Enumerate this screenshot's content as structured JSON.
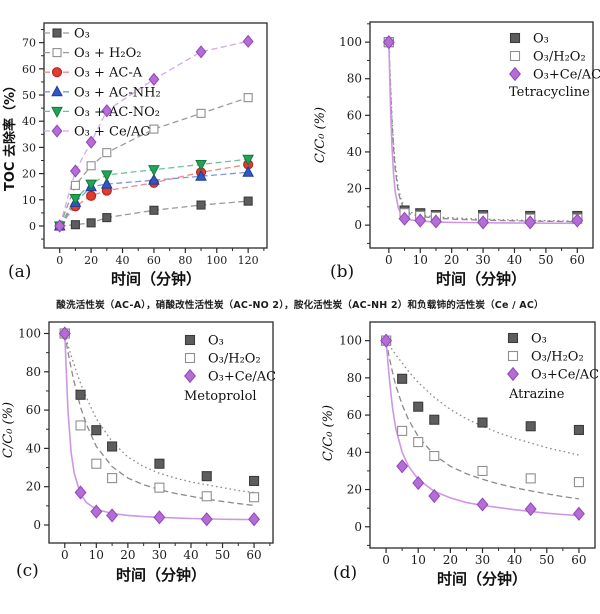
{
  "figure_caption": "酸洗活性炭（AC-A），硝酸改性活性炭（AC-NO 2），胺化活性炭（AC-NH 2）和负载铈的活性炭（Ce / AC）",
  "colors": {
    "axis": "#2b2b2b",
    "gray_marker": "#5d5d5d",
    "open_marker_edge": "#8f8f8f",
    "red": "#e23b30",
    "blue": "#2f58c3",
    "green": "#21a358",
    "violet": "#b46cd6",
    "violet_line": "#d3a9ea",
    "gray_line": "#9b9b9b"
  },
  "chart_data": [
    {
      "id": "a",
      "panel_label": "(a)",
      "type": "line",
      "xlabel": "时间（分钟）",
      "ylabel": "TOC 去除率（%）",
      "xlim": [
        -10,
        132
      ],
      "ylim": [
        -8.4,
        77.5
      ],
      "xticks": [
        0,
        20,
        40,
        60,
        80,
        100,
        120
      ],
      "xminor": 10,
      "yticks": [
        0,
        10,
        20,
        30,
        40,
        50,
        60,
        70
      ],
      "yminor": 5,
      "x": [
        0,
        10,
        20,
        30,
        60,
        90,
        120
      ],
      "series": [
        {
          "name": "O₃",
          "marker": "square",
          "color": "#5d5d5d",
          "edge": "#3c3c3c",
          "line": "dashed",
          "line_color": "#9b9b9b",
          "values": [
            0,
            0.5,
            1.2,
            3.2,
            6,
            8,
            9.5
          ]
        },
        {
          "name": "O₃ + H₂O₂",
          "marker": "square-open",
          "color": "#ffffff",
          "edge": "#8f8f8f",
          "line": "dashed",
          "line_color": "#9b9b9b",
          "values": [
            0,
            15.5,
            23,
            28,
            37,
            43,
            49
          ]
        },
        {
          "name": "O₃ + AC-A",
          "marker": "circle",
          "color": "#e23b30",
          "edge": "#b0241b",
          "line": "dashed",
          "line_color": "#ef8c86",
          "values": [
            0,
            7.5,
            11.5,
            13.5,
            16.5,
            20.5,
            23.5
          ]
        },
        {
          "name": "O₃ + AC-NH₂",
          "marker": "triangle-up",
          "color": "#2f58c3",
          "edge": "#1d3d96",
          "line": "dashed",
          "line_color": "#7d97dd",
          "values": [
            0,
            9,
            15,
            16,
            17.5,
            19,
            20.5
          ]
        },
        {
          "name": "O₃ + AC-NO₂",
          "marker": "triangle-down",
          "color": "#21a358",
          "edge": "#127a3e",
          "line": "dashed",
          "line_color": "#6cc397",
          "values": [
            0,
            10.5,
            16,
            19.5,
            21.5,
            23.5,
            25.5
          ]
        },
        {
          "name": "O₃ + Ce/AC",
          "marker": "diamond",
          "color": "#b46cd6",
          "edge": "#9146b8",
          "line": "dashed",
          "line_color": "#d3a9ea",
          "values": [
            0,
            21,
            32,
            44,
            56,
            66.5,
            70.5
          ]
        }
      ],
      "curves": [],
      "legend_title": ""
    },
    {
      "id": "b",
      "panel_label": "(b)",
      "type": "scatter",
      "xlabel": "时间（分钟）",
      "ylabel": "C/C₀ (%)",
      "xlim": [
        -6,
        65
      ],
      "ylim": [
        -12.5,
        111
      ],
      "xticks": [
        0,
        10,
        20,
        30,
        40,
        50,
        60
      ],
      "xminor": 5,
      "yticks": [
        0,
        20,
        40,
        60,
        80,
        100
      ],
      "yminor": 10,
      "x": [
        0,
        5,
        10,
        15,
        30,
        45,
        60
      ],
      "series": [
        {
          "name": "O₃",
          "marker": "square",
          "color": "#5d5d5d",
          "edge": "#3c3c3c",
          "line": "none",
          "values": [
            100,
            8,
            6.5,
            5.5,
            5.5,
            5,
            5
          ]
        },
        {
          "name": "O₃/H₂O₂",
          "marker": "square-open",
          "color": "#ffffff",
          "edge": "#8f8f8f",
          "line": "none",
          "values": [
            100,
            6.5,
            5,
            4.5,
            4,
            3.5,
            3.5
          ]
        },
        {
          "name": "O₃+Ce/AC",
          "marker": "diamond",
          "color": "#b46cd6",
          "edge": "#9146b8",
          "line": "none",
          "values": [
            100,
            3.5,
            2.5,
            2,
            1.5,
            1.5,
            2.5
          ]
        }
      ],
      "curves": [
        {
          "name": "O₃ fit",
          "style": "dotted",
          "color": "#8a8a8a",
          "x": [
            0,
            0.5,
            1,
            1.5,
            2,
            3,
            4,
            5,
            7,
            10,
            15,
            20,
            30,
            45,
            60
          ],
          "y": [
            100,
            79,
            59,
            45,
            34,
            20.5,
            13.5,
            10,
            7,
            5.5,
            4.5,
            4,
            3.2,
            2.6,
            2.2
          ]
        },
        {
          "name": "O₃/H₂O₂ fit",
          "style": "dashed",
          "color": "#8a8a8a",
          "x": [
            0,
            0.5,
            1,
            1.5,
            2,
            3,
            4,
            5,
            7,
            10,
            15,
            20,
            30,
            45,
            60
          ],
          "y": [
            100,
            76,
            56,
            42,
            31,
            18,
            12,
            8.5,
            6,
            4.8,
            3.8,
            3.3,
            2.7,
            2.2,
            1.9
          ]
        },
        {
          "name": "O₃+Ce/AC fit",
          "style": "solid",
          "color": "#cf97e3",
          "x": [
            0,
            0.5,
            1,
            1.5,
            2,
            3,
            4,
            5,
            7,
            10,
            15,
            20,
            30,
            45,
            60
          ],
          "y": [
            100,
            66,
            43,
            28,
            18.5,
            9.5,
            5.8,
            4.2,
            2.8,
            2.2,
            1.7,
            1.5,
            1.3,
            1.1,
            1
          ]
        }
      ],
      "legend_title": "Tetracycline"
    },
    {
      "id": "c",
      "panel_label": "(c)",
      "type": "scatter",
      "xlabel": "时间（分钟）",
      "ylabel": "C/C₀ (%)",
      "xlim": [
        -5,
        66
      ],
      "ylim": [
        -9.4,
        106
      ],
      "xticks": [
        0,
        10,
        20,
        30,
        40,
        50,
        60
      ],
      "xminor": 5,
      "yticks": [
        0,
        20,
        40,
        60,
        80,
        100
      ],
      "yminor": 10,
      "x": [
        0,
        5,
        10,
        15,
        30,
        45,
        60
      ],
      "series": [
        {
          "name": "O₃",
          "marker": "square",
          "color": "#5d5d5d",
          "edge": "#3c3c3c",
          "line": "none",
          "values": [
            100,
            68,
            49.5,
            41,
            32,
            25.5,
            23
          ]
        },
        {
          "name": "O₃/H₂O₂",
          "marker": "square-open",
          "color": "#ffffff",
          "edge": "#8f8f8f",
          "line": "none",
          "values": [
            100,
            52,
            32,
            24.5,
            19.5,
            15,
            14.5
          ]
        },
        {
          "name": "O₃+Ce/AC",
          "marker": "diamond",
          "color": "#b46cd6",
          "edge": "#9146b8",
          "line": "none",
          "values": [
            100,
            17,
            7,
            5,
            4,
            3,
            3
          ]
        }
      ],
      "curves": [
        {
          "name": "O₃ fit",
          "style": "dotted",
          "color": "#8a8a8a",
          "x": [
            0,
            1,
            2,
            3,
            5,
            7,
            10,
            15,
            20,
            25,
            30,
            35,
            40,
            45,
            50,
            55,
            60
          ],
          "y": [
            100,
            94,
            88.5,
            83.5,
            74,
            66,
            55.5,
            43.5,
            35.5,
            30.5,
            27,
            24.5,
            22.5,
            21,
            19.5,
            18,
            17
          ]
        },
        {
          "name": "O₃/H₂O₂ fit",
          "style": "dashed",
          "color": "#8a8a8a",
          "x": [
            0,
            1,
            2,
            3,
            5,
            7,
            10,
            15,
            20,
            25,
            30,
            35,
            40,
            45,
            50,
            55,
            60
          ],
          "y": [
            100,
            90.5,
            82,
            74.5,
            61.5,
            52,
            41,
            30.5,
            24.5,
            21,
            18.5,
            16.5,
            15,
            13.5,
            12.3,
            11.2,
            10.2
          ]
        },
        {
          "name": "O₃+Ce/AC fit",
          "style": "solid",
          "color": "#cf97e3",
          "x": [
            0,
            1,
            2,
            3,
            5,
            7,
            10,
            15,
            20,
            25,
            30,
            35,
            40,
            45,
            50,
            55,
            60
          ],
          "y": [
            100,
            60,
            38,
            27,
            16,
            11.5,
            8.2,
            6,
            5,
            4.4,
            4,
            3.7,
            3.4,
            3.2,
            3,
            2.9,
            2.8
          ]
        }
      ],
      "legend_title": "Metoprolol"
    },
    {
      "id": "d",
      "panel_label": "(d)",
      "type": "scatter",
      "xlabel": "时间（分钟）",
      "ylabel": "C/C₀ (%)",
      "xlim": [
        -5,
        65
      ],
      "ylim": [
        -11.4,
        110
      ],
      "xticks": [
        0,
        10,
        20,
        30,
        40,
        50,
        60
      ],
      "xminor": 5,
      "yticks": [
        0,
        20,
        40,
        60,
        80,
        100
      ],
      "yminor": 10,
      "x": [
        0,
        5,
        10,
        15,
        30,
        45,
        60
      ],
      "series": [
        {
          "name": "O₃",
          "marker": "square",
          "color": "#5d5d5d",
          "edge": "#3c3c3c",
          "line": "none",
          "values": [
            100,
            79.5,
            64.5,
            57.5,
            56,
            54,
            52
          ]
        },
        {
          "name": "O₃/H₂O₂",
          "marker": "square-open",
          "color": "#ffffff",
          "edge": "#8f8f8f",
          "line": "none",
          "values": [
            100,
            51.5,
            45.5,
            38,
            30,
            26,
            24
          ]
        },
        {
          "name": "O₃+Ce/AC",
          "marker": "diamond",
          "color": "#b46cd6",
          "edge": "#9146b8",
          "line": "none",
          "values": [
            100,
            32.5,
            23.5,
            16.5,
            12,
            9.5,
            7
          ]
        }
      ],
      "curves": [
        {
          "name": "O₃ fit",
          "style": "dotted",
          "color": "#8a8a8a",
          "x": [
            0,
            1,
            2,
            3,
            5,
            7,
            10,
            15,
            20,
            25,
            30,
            35,
            40,
            45,
            50,
            55,
            60
          ],
          "y": [
            100,
            97.5,
            95,
            92.5,
            88,
            83.5,
            77.5,
            69.5,
            63,
            58,
            54,
            50.5,
            47.5,
            45,
            42.5,
            40.5,
            38.5
          ]
        },
        {
          "name": "O₃/H₂O₂ fit",
          "style": "dashed",
          "color": "#8a8a8a",
          "x": [
            0,
            1,
            2,
            3,
            5,
            7,
            10,
            15,
            20,
            25,
            30,
            35,
            40,
            45,
            50,
            55,
            60
          ],
          "y": [
            100,
            91,
            83,
            76,
            65.5,
            57.5,
            48.5,
            38.5,
            32.5,
            28.5,
            25.5,
            23,
            21,
            19.3,
            17.7,
            16.2,
            15
          ]
        },
        {
          "name": "O₃+Ce/AC fit",
          "style": "solid",
          "color": "#cf97e3",
          "x": [
            0,
            1,
            2,
            3,
            5,
            7,
            10,
            15,
            20,
            25,
            30,
            35,
            40,
            45,
            50,
            55,
            60
          ],
          "y": [
            100,
            80,
            64,
            53,
            40,
            32.5,
            25.5,
            19,
            15.5,
            13,
            11.5,
            10.3,
            9.2,
            8.2,
            7.3,
            6.6,
            6
          ]
        }
      ],
      "legend_title": "Atrazine"
    }
  ]
}
